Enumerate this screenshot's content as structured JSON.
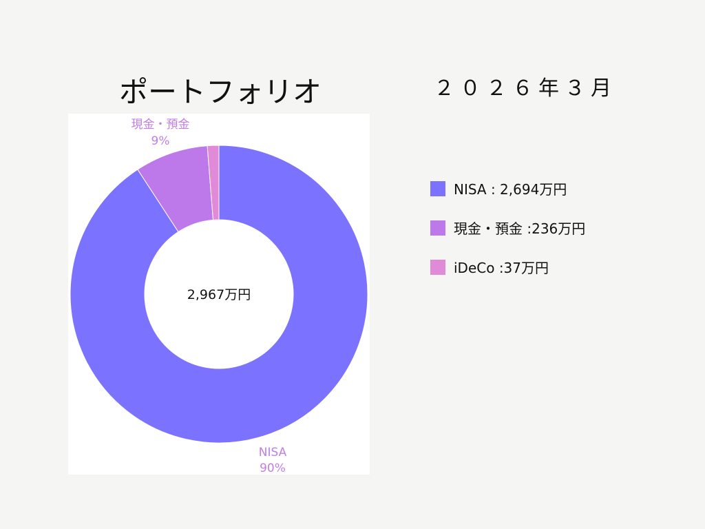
{
  "title": "ポートフォリオ",
  "date": "２０２６年３月",
  "chart_data": {
    "type": "pie",
    "donut": true,
    "center_label": "2,967万円",
    "categories": [
      "NISA",
      "現金・預金",
      "iDeCo"
    ],
    "values": [
      2694,
      236,
      37
    ],
    "unit": "万円",
    "colors": [
      "#7b73ff",
      "#bd78ea",
      "#e08ad8"
    ],
    "data_labels": [
      {
        "name": "NISA",
        "percent": "90%"
      },
      {
        "name": "現金・預金",
        "percent": "9%"
      }
    ],
    "legend": [
      {
        "label": "NISA : 2,694万円",
        "color": "#7b73ff"
      },
      {
        "label": "現金・預金 :236万円",
        "color": "#bd78ea"
      },
      {
        "label": "iDeCo :37万円",
        "color": "#e08ad8"
      }
    ],
    "legend_position": "right"
  }
}
